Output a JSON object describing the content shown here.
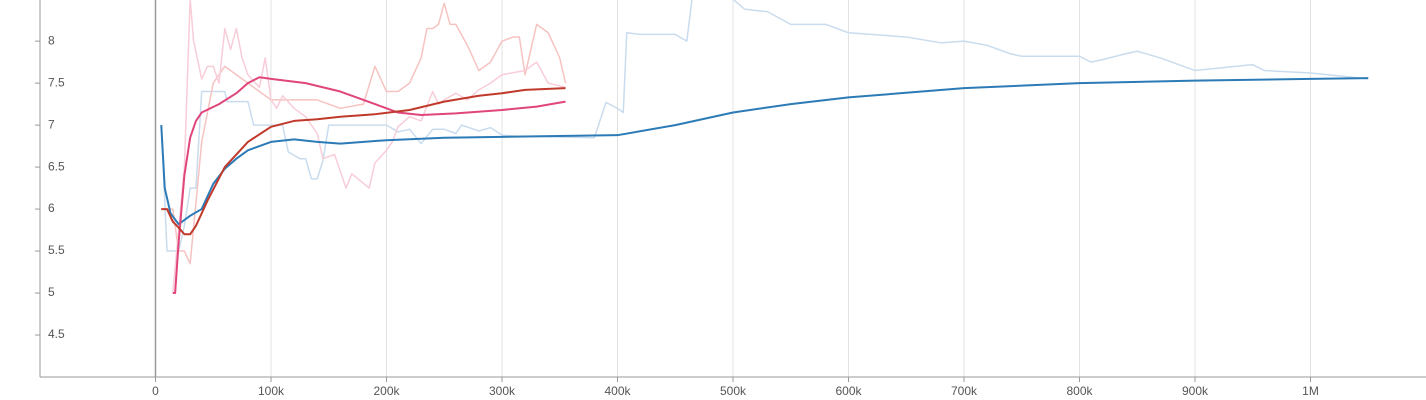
{
  "chart_data": {
    "type": "line",
    "xlim": [
      -100000,
      1100000
    ],
    "ylim": [
      4,
      8.49
    ],
    "xticks": [
      0,
      {
        "value": 100000,
        "label": "100k"
      },
      {
        "value": 200000,
        "label": "200k"
      },
      {
        "value": 300000,
        "label": "300k"
      },
      {
        "value": 400000,
        "label": "400k"
      },
      {
        "value": 500000,
        "label": "500k"
      },
      {
        "value": 600000,
        "label": "600k"
      },
      {
        "value": 700000,
        "label": "700k"
      },
      {
        "value": 800000,
        "label": "800k"
      },
      {
        "value": 900000,
        "label": "900k"
      },
      {
        "value": 1000000,
        "label": "1M"
      }
    ],
    "yticks": [
      4.5,
      5,
      5.5,
      6,
      6.5,
      7,
      7.5,
      8
    ],
    "grid": true,
    "series": [
      {
        "color": "#c9dcee",
        "x": [
          5000,
          10000,
          20000,
          25000,
          30000,
          35000,
          40000,
          60000,
          62000,
          80000,
          85000,
          110000,
          115000,
          125000,
          130000,
          135000,
          140000,
          145000,
          150000,
          200000,
          210000,
          220000,
          230000,
          240000,
          250000,
          260000,
          265000,
          280000,
          290000,
          300000,
          310000,
          380000,
          390000,
          400000,
          405000,
          408000,
          420000,
          450000,
          460000,
          465000,
          500000,
          510000,
          530000,
          550000,
          580000,
          600000,
          650000,
          680000,
          700000,
          720000,
          740000,
          750000,
          800000,
          810000,
          820000,
          840000,
          850000,
          870000,
          900000,
          950000,
          960000,
          1000000,
          1050000
        ],
        "values": [
          7.0,
          5.5,
          5.5,
          5.8,
          6.25,
          6.25,
          7.4,
          7.4,
          7.28,
          7.28,
          7.0,
          7.0,
          6.68,
          6.6,
          6.6,
          6.36,
          6.36,
          6.58,
          7.0,
          7.0,
          6.92,
          6.95,
          6.78,
          6.95,
          6.95,
          6.9,
          7.0,
          6.93,
          6.97,
          6.88,
          6.87,
          6.85,
          7.27,
          7.2,
          7.15,
          8.1,
          8.08,
          8.08,
          8.0,
          8.55,
          8.5,
          8.38,
          8.35,
          8.2,
          8.2,
          8.1,
          8.05,
          7.98,
          8.0,
          7.95,
          7.85,
          7.82,
          7.82,
          7.75,
          7.78,
          7.85,
          7.88,
          7.8,
          7.65,
          7.72,
          7.65,
          7.62,
          7.55
        ]
      },
      {
        "color": "#f6c3c1",
        "x": [
          5000,
          15000,
          20000,
          25000,
          30000,
          40000,
          50000,
          60000,
          80000,
          100000,
          120000,
          140000,
          160000,
          180000,
          190000,
          200000,
          210000,
          220000,
          230000,
          235000,
          240000,
          245000,
          250000,
          255000,
          260000,
          270000,
          280000,
          290000,
          300000,
          310000,
          315000,
          320000,
          330000,
          340000,
          350000,
          355000
        ],
        "values": [
          6.0,
          6.0,
          5.5,
          5.5,
          5.35,
          6.8,
          7.5,
          7.7,
          7.5,
          7.3,
          7.3,
          7.3,
          7.2,
          7.25,
          7.7,
          7.4,
          7.4,
          7.5,
          7.8,
          8.15,
          8.15,
          8.2,
          8.45,
          8.2,
          8.2,
          7.95,
          7.65,
          7.75,
          8.0,
          8.05,
          8.05,
          7.6,
          8.2,
          8.1,
          7.8,
          7.5
        ]
      },
      {
        "color": "#f8cdd8",
        "x": [
          15000,
          25000,
          30000,
          33000,
          40000,
          45000,
          50000,
          55000,
          60000,
          65000,
          70000,
          75000,
          80000,
          90000,
          95000,
          100000,
          105000,
          110000,
          120000,
          130000,
          140000,
          145000,
          155000,
          165000,
          170000,
          185000,
          190000,
          200000,
          205000,
          210000,
          220000,
          230000,
          240000,
          245000,
          250000,
          260000,
          270000,
          280000,
          290000,
          300000,
          320000,
          330000,
          340000,
          355000
        ],
        "values": [
          5.0,
          6.5,
          8.5,
          8.0,
          7.55,
          7.7,
          7.7,
          7.5,
          8.15,
          7.9,
          8.15,
          7.8,
          7.6,
          7.45,
          7.8,
          7.3,
          7.2,
          7.35,
          7.2,
          7.1,
          6.9,
          6.6,
          6.65,
          6.25,
          6.42,
          6.25,
          6.55,
          6.7,
          6.8,
          6.98,
          7.1,
          7.05,
          7.4,
          7.25,
          7.3,
          7.38,
          7.3,
          7.42,
          7.5,
          7.6,
          7.65,
          7.75,
          7.5,
          7.45
        ]
      },
      {
        "color": "#2c7bb6",
        "x": [
          5000,
          8000,
          13000,
          20000,
          30000,
          40000,
          50000,
          60000,
          70000,
          80000,
          100000,
          120000,
          140000,
          160000,
          200000,
          250000,
          300000,
          400000,
          450000,
          500000,
          550000,
          600000,
          700000,
          800000,
          900000,
          1000000,
          1050000
        ],
        "values": [
          7.0,
          6.25,
          5.95,
          5.82,
          5.92,
          6.0,
          6.3,
          6.48,
          6.6,
          6.7,
          6.8,
          6.83,
          6.8,
          6.78,
          6.82,
          6.85,
          6.86,
          6.88,
          7.0,
          7.15,
          7.25,
          7.33,
          7.44,
          7.5,
          7.53,
          7.55,
          7.56
        ]
      },
      {
        "color": "#e0457b",
        "x": [
          15000,
          17000,
          20000,
          25000,
          30000,
          35000,
          40000,
          55000,
          70000,
          80000,
          90000,
          100000,
          130000,
          160000,
          190000,
          210000,
          230000,
          260000,
          300000,
          330000,
          355000
        ],
        "values": [
          5.0,
          5.0,
          5.6,
          6.4,
          6.85,
          7.05,
          7.15,
          7.25,
          7.38,
          7.5,
          7.57,
          7.55,
          7.5,
          7.4,
          7.25,
          7.15,
          7.12,
          7.14,
          7.18,
          7.22,
          7.28
        ]
      },
      {
        "color": "#c0392b",
        "x": [
          5000,
          10000,
          15000,
          20000,
          25000,
          30000,
          35000,
          45000,
          60000,
          80000,
          100000,
          120000,
          140000,
          160000,
          190000,
          220000,
          250000,
          280000,
          300000,
          320000,
          355000
        ],
        "values": [
          6.0,
          6.0,
          5.85,
          5.78,
          5.7,
          5.7,
          5.8,
          6.1,
          6.5,
          6.8,
          6.98,
          7.05,
          7.07,
          7.1,
          7.13,
          7.18,
          7.28,
          7.35,
          7.38,
          7.42,
          7.44
        ]
      }
    ]
  }
}
